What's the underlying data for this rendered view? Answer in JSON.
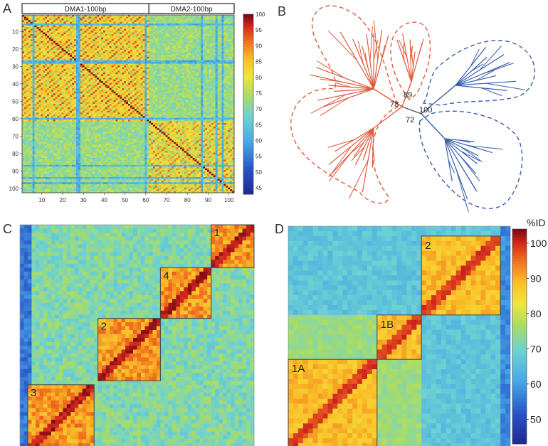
{
  "panels": {
    "a": "A",
    "b": "B",
    "c": "C",
    "d": "D"
  },
  "chart_data": [
    {
      "panel": "A",
      "type": "heatmap",
      "group_labels": [
        "DMA1-100bp",
        "DMA2-100bp"
      ],
      "group_ranges": [
        [
          1,
          61
        ],
        [
          62,
          102
        ]
      ],
      "x_ticks": [
        10,
        20,
        30,
        40,
        50,
        60,
        70,
        80,
        90,
        100
      ],
      "y_ticks": [
        10,
        20,
        30,
        40,
        50,
        60,
        70,
        80,
        90,
        100
      ],
      "size": 102,
      "colorbar_ticks": [
        100,
        95,
        90,
        85,
        80,
        75,
        70,
        65,
        60,
        55,
        50,
        45
      ],
      "range": [
        43,
        100
      ]
    },
    {
      "panel": "B",
      "type": "tree",
      "node_labels": [
        "78",
        "89",
        "100",
        "72"
      ],
      "clusters": [
        {
          "color": "#e05a3c",
          "style": "dashed"
        },
        {
          "color": "#e05a3c",
          "style": "dashed"
        },
        {
          "color": "#3a5fae",
          "style": "dashed"
        },
        {
          "color": "#3a5fae",
          "style": "dashed"
        }
      ]
    },
    {
      "panel": "C",
      "type": "heatmap",
      "block_labels": [
        "1",
        "2",
        "3",
        "4"
      ],
      "blocks": [
        {
          "label": "1",
          "from": 0.83,
          "to": 1.0
        },
        {
          "label": "2",
          "from": 0.34,
          "to": 0.6
        },
        {
          "label": "3",
          "from": 0.04,
          "to": 0.33
        },
        {
          "label": "4",
          "from": 0.61,
          "to": 0.82
        }
      ]
    },
    {
      "panel": "D",
      "type": "heatmap",
      "block_labels": [
        "2",
        "1B",
        "1A"
      ],
      "colorbar_title": "%ID",
      "colorbar_ticks": [
        100,
        90,
        80,
        70,
        60,
        50
      ],
      "range": [
        43,
        104
      ]
    }
  ]
}
